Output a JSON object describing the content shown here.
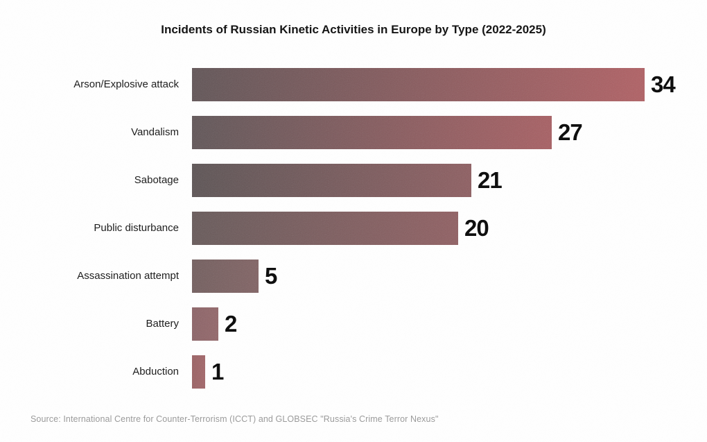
{
  "chart": {
    "title": "Incidents of Russian Kinetic Activities in Europe by Type (2022-2025)",
    "source_note": "Source: International Centre for Counter-Terrorism (ICCT) and GLOBSEC \"Russia's Crime Terror Nexus\""
  },
  "chart_data": {
    "type": "bar",
    "orientation": "horizontal",
    "title": "Incidents of Russian Kinetic Activities in Europe by Type (2022-2025)",
    "categories": [
      "Arson/Explosive attack",
      "Vandalism",
      "Sabotage",
      "Public disturbance",
      "Assassination attempt",
      "Battery",
      "Abduction"
    ],
    "values": [
      34,
      27,
      21,
      20,
      5,
      2,
      1
    ],
    "xlim": [
      0,
      34
    ],
    "grid": false,
    "legend": false,
    "value_labels_shown": true,
    "source": "Source: International Centre for Counter-Terrorism (ICCT) and GLOBSEC \"Russia's Crime Terror Nexus\"",
    "bar_gradients": [
      {
        "from": "#5f5254",
        "to": "#b05e62"
      },
      {
        "from": "#5e5355",
        "to": "#a75d61"
      },
      {
        "from": "#5a5152",
        "to": "#8d5c5f"
      },
      {
        "from": "#655757",
        "to": "#8f5d60"
      },
      {
        "from": "#715c5c",
        "to": "#806162"
      },
      {
        "from": "#8b6165",
        "to": "#926568"
      },
      {
        "from": "#9a5f61",
        "to": "#a26467"
      }
    ],
    "title_color": "#121212",
    "label_color": "#1b1b1b",
    "value_color": "#0c0c0c",
    "source_color": "#9b9b9b",
    "background": "#ffffff"
  }
}
